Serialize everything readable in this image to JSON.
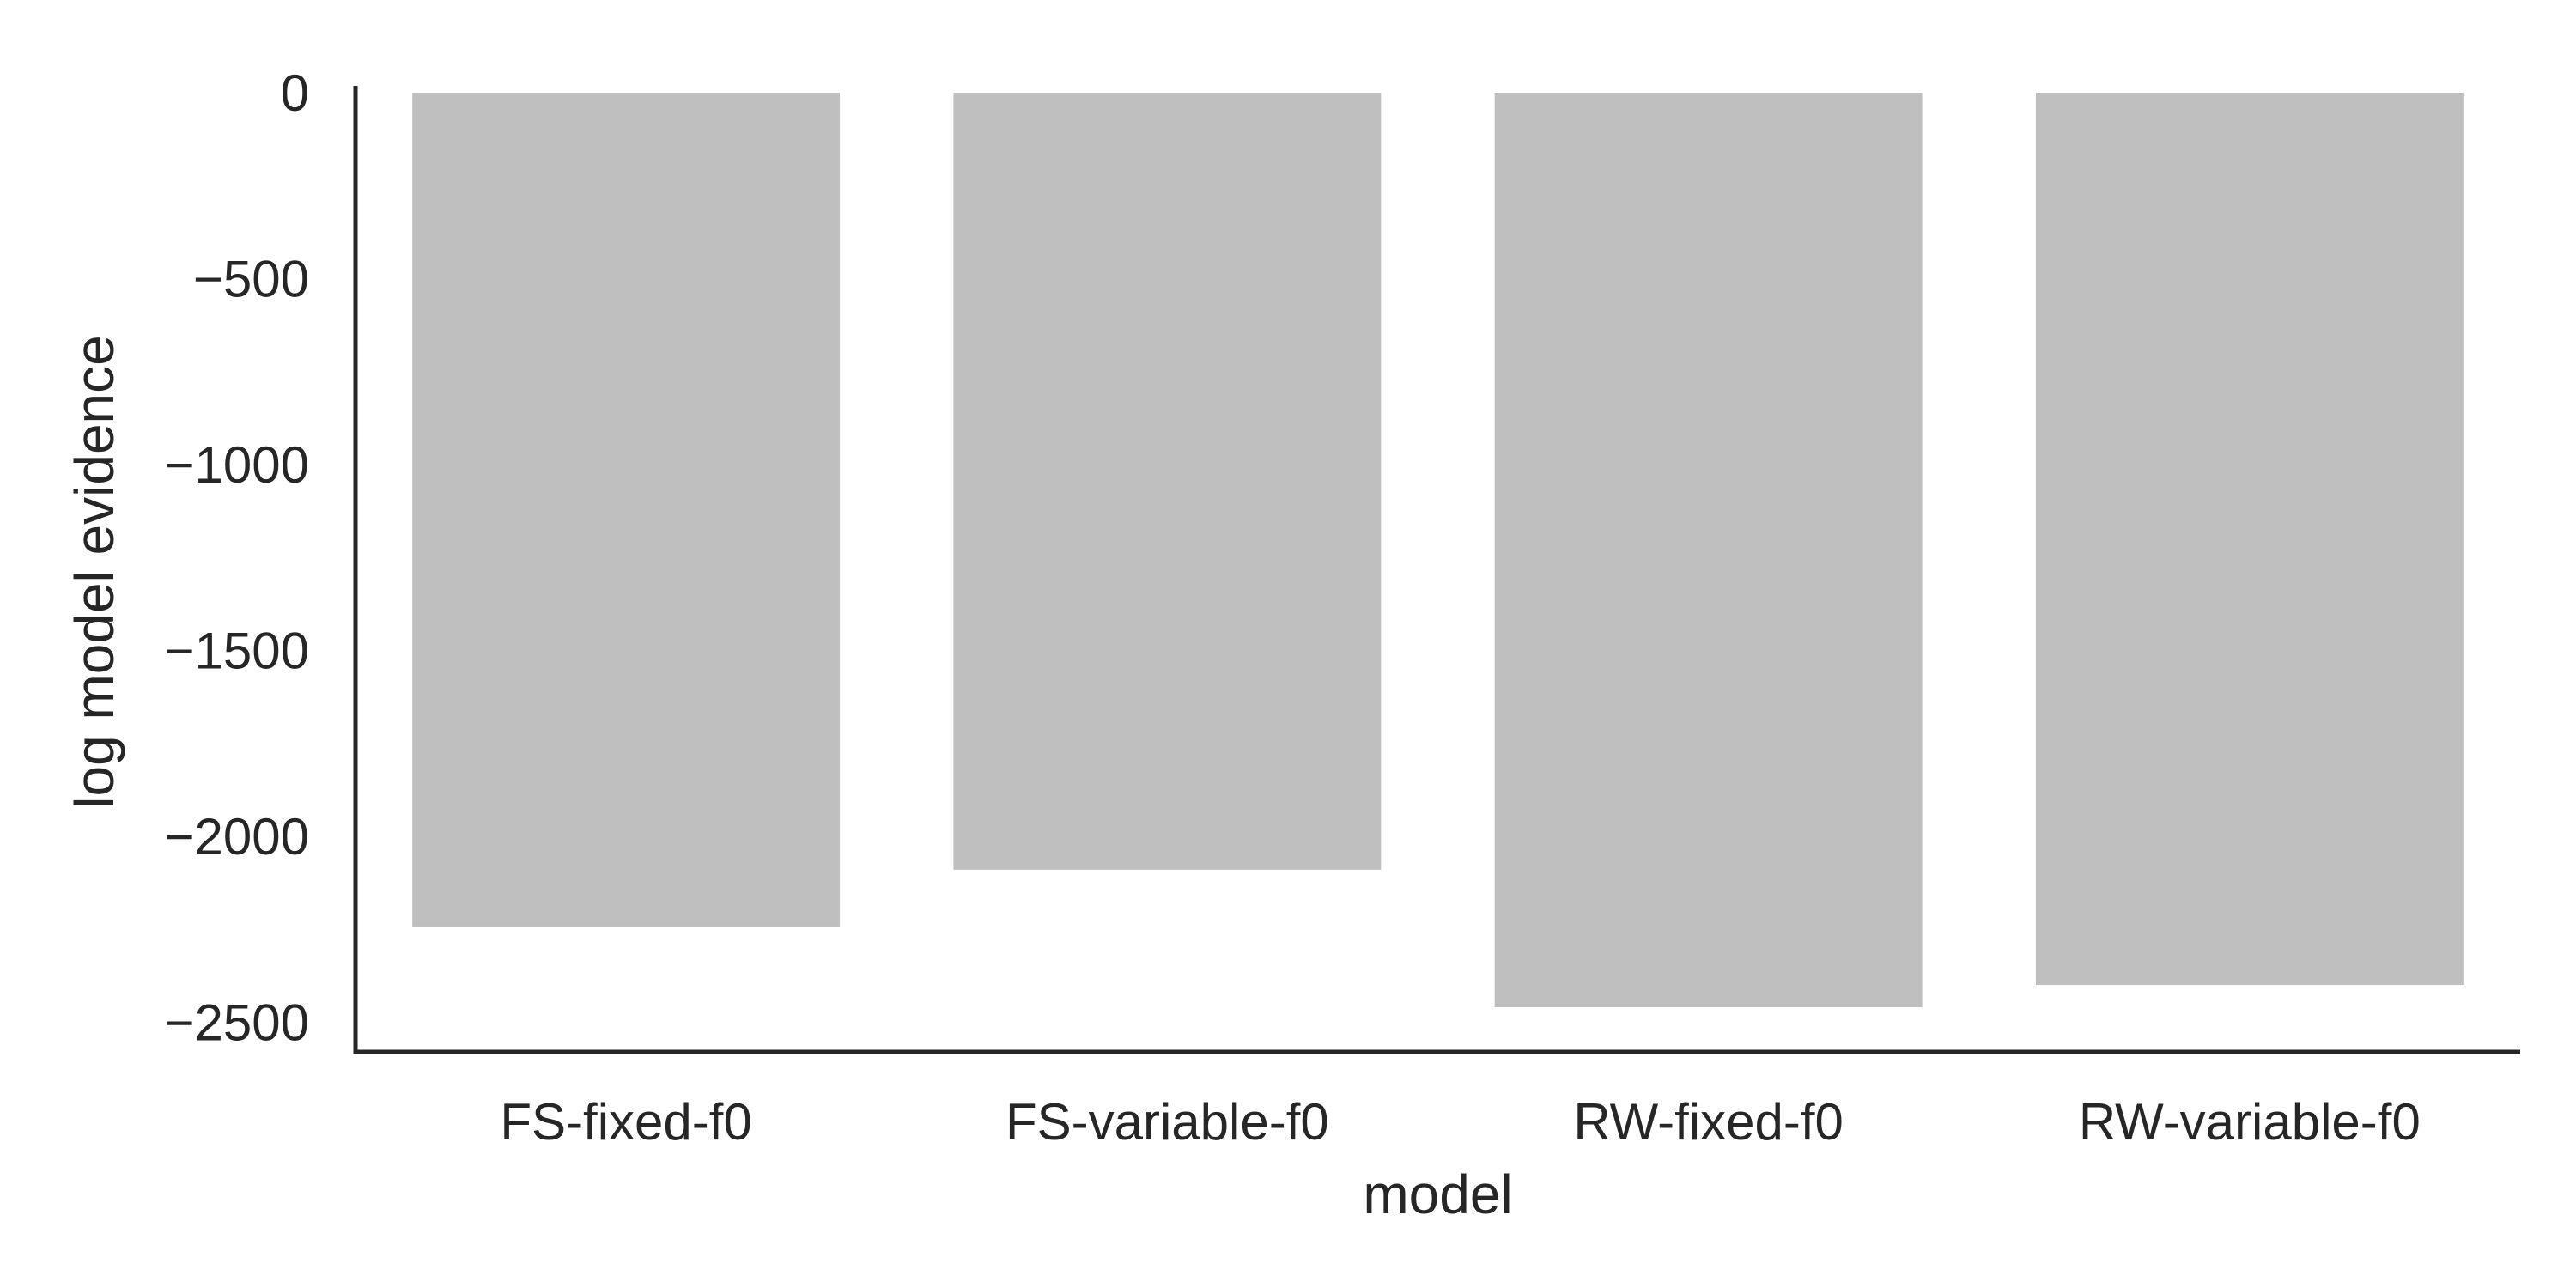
{
  "chart_data": {
    "type": "bar",
    "title": "",
    "xlabel": "model",
    "ylabel": "log model evidence",
    "categories": [
      "FS-fixed-f0",
      "FS-variable-f0",
      "RW-fixed-f0",
      "RW-variable-f0"
    ],
    "values": [
      -2245,
      -2090,
      -2460,
      -2400
    ],
    "ylim": [
      -2580,
      0
    ],
    "yticks": [
      0,
      -500,
      -1000,
      -1500,
      -2000,
      -2500
    ],
    "ytick_labels": [
      "0",
      "−500",
      "−1000",
      "−1500",
      "−2000",
      "−2500"
    ],
    "grid": false,
    "legend": "none",
    "colors": {
      "bar": "#bfbfbf",
      "axis": "#262626",
      "text": "#262626"
    }
  }
}
